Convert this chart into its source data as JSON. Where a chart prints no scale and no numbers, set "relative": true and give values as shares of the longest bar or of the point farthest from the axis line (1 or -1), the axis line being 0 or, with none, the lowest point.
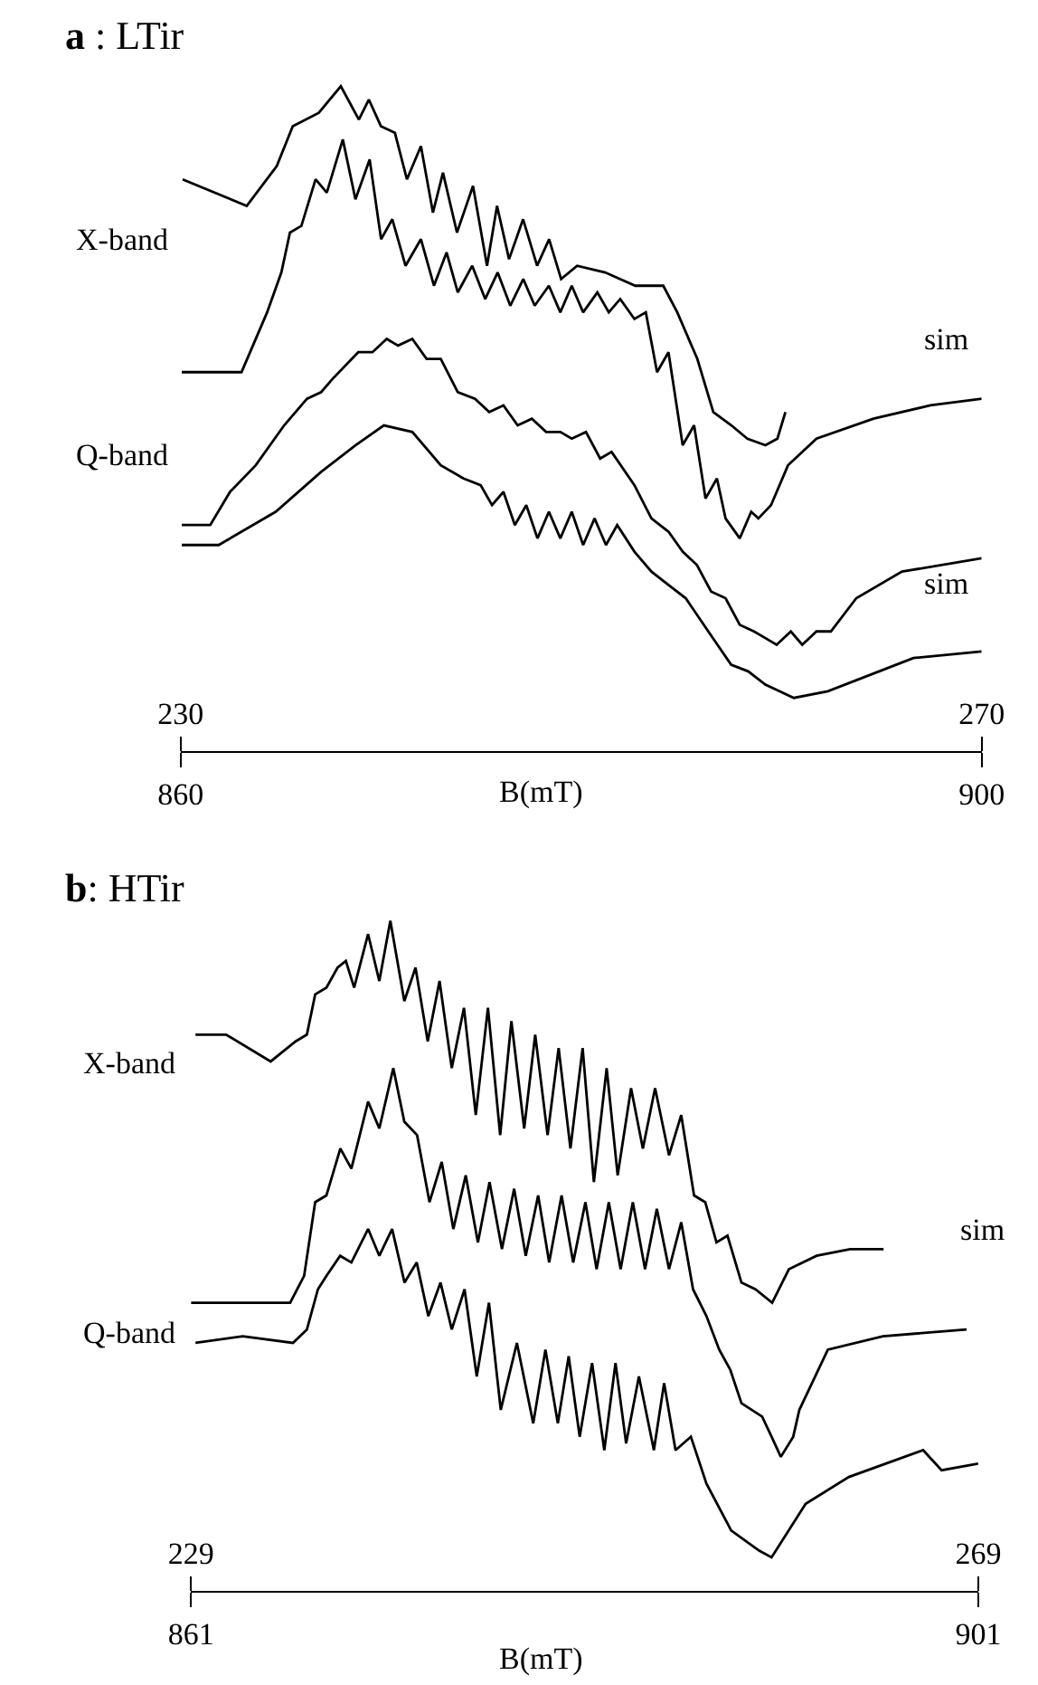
{
  "chart_data": [
    {
      "type": "line",
      "title": "a : LTir",
      "xlabel": "B(mT)",
      "relative": true,
      "xlim": [
        860,
        900
      ],
      "xticks": [
        860,
        900
      ],
      "x2lim": [
        230,
        270
      ],
      "x2ticks": [
        230,
        270
      ],
      "annotations": [
        "X-band",
        "Q-band",
        "sim",
        "sim"
      ],
      "series": [
        {
          "color": "#000000",
          "axis": "x2",
          "x": [
            230.1,
            233.3,
            234.8,
            235.6,
            236.9,
            238.0,
            238.9,
            239.4,
            240.0,
            240.7,
            241.3,
            242.0,
            242.6,
            243.1,
            243.8,
            244.6,
            245.3,
            245.8,
            246.4,
            247.1,
            247.8,
            248.4,
            249.0,
            249.8,
            251.2,
            252.7,
            254.1,
            254.8,
            255.8,
            256.6,
            257.5,
            258.3,
            259.2,
            259.8,
            260.2
          ],
          "values": [
            0.86,
            0.82,
            0.88,
            0.94,
            0.96,
            1.0,
            0.95,
            0.98,
            0.94,
            0.93,
            0.86,
            0.91,
            0.81,
            0.87,
            0.78,
            0.85,
            0.73,
            0.82,
            0.74,
            0.8,
            0.73,
            0.77,
            0.71,
            0.73,
            0.72,
            0.7,
            0.7,
            0.66,
            0.59,
            0.51,
            0.49,
            0.47,
            0.46,
            0.47,
            0.51
          ]
        },
        {
          "color": "#000000",
          "axis": "x2",
          "x": [
            230.06,
            233.04,
            233.61,
            234.32,
            235.03,
            235.46,
            236.03,
            236.74,
            237.3,
            238.1,
            238.73,
            239.44,
            240.01,
            240.57,
            241.23,
            242.0,
            242.65,
            243.28,
            243.84,
            244.56,
            245.21,
            245.83,
            246.46,
            247.11,
            247.68,
            248.39,
            248.96,
            249.53,
            250.1,
            250.81,
            251.38,
            251.95,
            252.66,
            253.23,
            253.79,
            254.36,
            255.07,
            255.64,
            256.21,
            256.78,
            257.21,
            257.92,
            258.49,
            258.85,
            259.48,
            260.33,
            261.75,
            264.6,
            267.44,
            270.0
          ],
          "values": [
            0.57,
            0.57,
            0.61,
            0.66,
            0.72,
            0.78,
            0.79,
            0.86,
            0.84,
            0.92,
            0.83,
            0.89,
            0.77,
            0.8,
            0.73,
            0.77,
            0.7,
            0.75,
            0.69,
            0.73,
            0.68,
            0.72,
            0.67,
            0.71,
            0.67,
            0.7,
            0.66,
            0.7,
            0.66,
            0.69,
            0.66,
            0.68,
            0.65,
            0.66,
            0.57,
            0.6,
            0.46,
            0.49,
            0.38,
            0.41,
            0.35,
            0.32,
            0.36,
            0.35,
            0.37,
            0.43,
            0.47,
            0.5,
            0.52,
            0.53
          ]
        },
        {
          "color": "#000000",
          "x": [
            860.06,
            861.48,
            862.47,
            863.75,
            865.17,
            866.31,
            867.02,
            867.59,
            868.87,
            869.58,
            870.29,
            870.86,
            871.57,
            872.28,
            872.99,
            873.84,
            874.7,
            875.41,
            876.12,
            876.83,
            877.54,
            878.25,
            878.96,
            879.53,
            880.24,
            880.95,
            881.52,
            882.66,
            883.51,
            884.36,
            885.07,
            885.78,
            886.49,
            887.21,
            887.92,
            888.63,
            889.2,
            889.76,
            890.47,
            891.04,
            891.75,
            892.47,
            893.74,
            896.02,
            900.0
          ],
          "values": [
            0.34,
            0.34,
            0.39,
            0.43,
            0.49,
            0.53,
            0.54,
            0.56,
            0.6,
            0.6,
            0.62,
            0.61,
            0.62,
            0.59,
            0.59,
            0.54,
            0.53,
            0.51,
            0.52,
            0.49,
            0.5,
            0.48,
            0.48,
            0.47,
            0.48,
            0.44,
            0.45,
            0.4,
            0.35,
            0.33,
            0.3,
            0.28,
            0.24,
            0.23,
            0.19,
            0.18,
            0.17,
            0.16,
            0.18,
            0.16,
            0.18,
            0.18,
            0.23,
            0.27,
            0.29
          ]
        },
        {
          "color": "#000000",
          "x": [
            860.06,
            861.9,
            864.75,
            867.02,
            868.73,
            870.15,
            871.57,
            872.99,
            874.13,
            874.98,
            875.55,
            876.12,
            876.69,
            877.26,
            877.82,
            878.39,
            878.96,
            879.53,
            880.1,
            880.67,
            881.24,
            881.8,
            882.66,
            883.51,
            884.36,
            885.22,
            886.35,
            887.49,
            888.34,
            889.2,
            890.62,
            892.32,
            894.88,
            896.59,
            900.0
          ],
          "values": [
            0.31,
            0.31,
            0.36,
            0.42,
            0.46,
            0.49,
            0.48,
            0.43,
            0.41,
            0.4,
            0.37,
            0.39,
            0.34,
            0.37,
            0.32,
            0.36,
            0.32,
            0.36,
            0.31,
            0.35,
            0.31,
            0.34,
            0.3,
            0.27,
            0.25,
            0.23,
            0.18,
            0.13,
            0.12,
            0.1,
            0.08,
            0.09,
            0.12,
            0.14,
            0.15
          ]
        }
      ]
    },
    {
      "type": "line",
      "title": "b: HTir",
      "xlabel": "B(mT)",
      "relative": true,
      "xlim": [
        861,
        901
      ],
      "xticks": [
        861,
        901
      ],
      "x2lim": [
        229,
        269
      ],
      "x2ticks": [
        229,
        269
      ],
      "annotations": [
        "X-band",
        "Q-band",
        "sim"
      ],
      "series": [
        {
          "color": "#000000",
          "axis": "x2",
          "x": [
            229.23,
            230.78,
            233.05,
            234.32,
            234.89,
            235.31,
            235.88,
            236.45,
            236.87,
            237.29,
            238.0,
            238.57,
            239.13,
            239.84,
            240.41,
            241.03,
            241.63,
            242.25,
            242.87,
            243.47,
            244.09,
            244.71,
            245.28,
            245.93,
            246.49,
            247.12,
            247.68,
            248.28,
            248.9,
            249.47,
            250.12,
            250.68,
            251.36,
            251.96,
            252.58,
            253.29,
            253.91,
            254.56,
            255.13,
            255.7,
            256.26,
            256.97,
            257.68,
            258.53,
            259.38,
            260.79,
            262.49,
            264.19
          ],
          "values": [
            0.83,
            0.83,
            0.79,
            0.82,
            0.83,
            0.89,
            0.9,
            0.93,
            0.94,
            0.9,
            0.98,
            0.91,
            1.0,
            0.88,
            0.93,
            0.82,
            0.91,
            0.78,
            0.87,
            0.71,
            0.87,
            0.68,
            0.85,
            0.69,
            0.83,
            0.68,
            0.81,
            0.66,
            0.81,
            0.61,
            0.78,
            0.62,
            0.75,
            0.66,
            0.75,
            0.65,
            0.71,
            0.59,
            0.58,
            0.52,
            0.53,
            0.46,
            0.45,
            0.43,
            0.48,
            0.5,
            0.51,
            0.51
          ]
        },
        {
          "color": "#000000",
          "axis": "x2",
          "x": [
            229.0,
            234.04,
            234.75,
            235.31,
            235.88,
            236.59,
            237.15,
            238.0,
            238.57,
            239.28,
            239.84,
            240.49,
            241.12,
            241.74,
            242.33,
            242.96,
            243.58,
            244.17,
            244.8,
            245.42,
            246.01,
            246.64,
            247.2,
            247.83,
            248.42,
            249.04,
            249.61,
            250.23,
            250.83,
            251.45,
            252.07,
            252.67,
            253.29,
            253.91,
            254.51,
            255.19,
            255.84,
            256.4,
            256.97,
            258.02,
            258.5,
            258.97,
            259.6,
            259.91,
            261.36,
            264.16,
            268.41
          ],
          "values": [
            0.43,
            0.43,
            0.47,
            0.58,
            0.59,
            0.66,
            0.63,
            0.73,
            0.69,
            0.78,
            0.7,
            0.68,
            0.58,
            0.64,
            0.54,
            0.62,
            0.52,
            0.61,
            0.51,
            0.6,
            0.5,
            0.59,
            0.49,
            0.59,
            0.49,
            0.58,
            0.48,
            0.58,
            0.48,
            0.58,
            0.48,
            0.57,
            0.48,
            0.55,
            0.45,
            0.41,
            0.36,
            0.33,
            0.28,
            0.26,
            0.23,
            0.2,
            0.23,
            0.27,
            0.36,
            0.38,
            0.39
          ]
        },
        {
          "color": "#000000",
          "x": [
            861.23,
            863.63,
            866.18,
            866.89,
            867.45,
            867.88,
            868.58,
            869.15,
            870.0,
            870.57,
            871.22,
            871.85,
            872.47,
            873.06,
            873.68,
            874.25,
            874.9,
            875.52,
            876.14,
            876.74,
            877.56,
            878.39,
            879.01,
            879.64,
            880.19,
            880.75,
            881.38,
            882.0,
            882.57,
            883.11,
            883.76,
            884.52,
            885.04,
            885.62,
            886.4,
            887.19,
            888.45,
            889.87,
            890.5,
            892.23,
            894.43,
            898.2,
            899.14,
            901.0
          ],
          "values": [
            0.37,
            0.38,
            0.37,
            0.39,
            0.45,
            0.47,
            0.5,
            0.49,
            0.54,
            0.5,
            0.54,
            0.46,
            0.49,
            0.41,
            0.46,
            0.39,
            0.45,
            0.32,
            0.43,
            0.27,
            0.37,
            0.25,
            0.36,
            0.25,
            0.35,
            0.23,
            0.34,
            0.21,
            0.34,
            0.22,
            0.32,
            0.21,
            0.31,
            0.21,
            0.23,
            0.16,
            0.09,
            0.06,
            0.05,
            0.13,
            0.17,
            0.21,
            0.18,
            0.19
          ]
        }
      ]
    }
  ]
}
